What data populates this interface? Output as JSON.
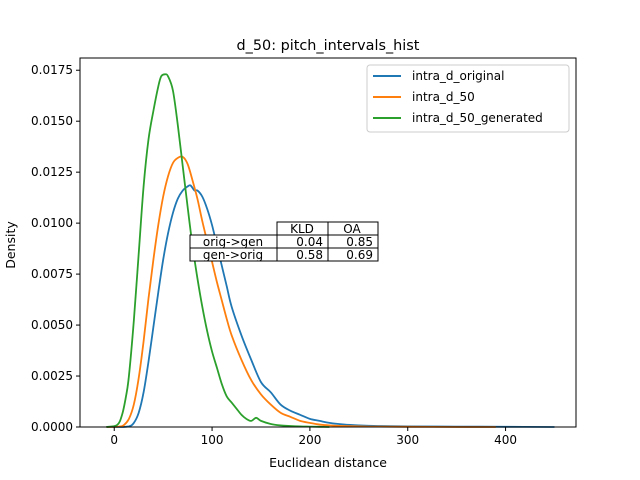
{
  "chart_data": {
    "type": "line",
    "title": "d_50: pitch_intervals_hist",
    "xlabel": "Euclidean distance",
    "ylabel": "Density",
    "xlim": [
      -35,
      472
    ],
    "ylim": [
      0,
      0.0181
    ],
    "xticks": [
      0,
      100,
      200,
      300,
      400
    ],
    "yticks": [
      0.0,
      0.0025,
      0.005,
      0.0075,
      0.01,
      0.0125,
      0.015,
      0.0175
    ],
    "xtick_labels": [
      "0",
      "100",
      "200",
      "300",
      "400"
    ],
    "ytick_labels": [
      "0.0000",
      "0.0025",
      "0.0050",
      "0.0075",
      "0.0100",
      "0.0125",
      "0.0150",
      "0.0175"
    ],
    "grid": false,
    "legend_position": "top-right",
    "series": [
      {
        "name": "intra_d_original",
        "color": "#1f77b4",
        "x": [
          -8,
          5,
          15,
          20,
          25,
          30,
          35,
          40,
          45,
          50,
          55,
          60,
          65,
          70,
          75,
          78,
          82,
          85,
          90,
          95,
          100,
          105,
          110,
          115,
          120,
          130,
          140,
          150,
          160,
          170,
          180,
          190,
          200,
          210,
          220,
          235,
          250,
          270,
          300,
          350,
          400,
          450
        ],
        "y": [
          0.0,
          0.0,
          3e-05,
          0.0002,
          0.0007,
          0.0017,
          0.0032,
          0.0049,
          0.0066,
          0.0082,
          0.0095,
          0.0105,
          0.0112,
          0.0116,
          0.0118,
          0.01185,
          0.0116,
          0.0116,
          0.0113,
          0.0107,
          0.0099,
          0.0089,
          0.0079,
          0.0069,
          0.0059,
          0.0045,
          0.0033,
          0.0022,
          0.0017,
          0.0011,
          0.0008,
          0.0006,
          0.0004,
          0.0003,
          0.0002,
          0.00012,
          8e-05,
          5e-05,
          3e-05,
          2e-05,
          1e-05,
          0.0
        ]
      },
      {
        "name": "intra_d_50",
        "color": "#ff7f0e",
        "x": [
          -8,
          5,
          10,
          15,
          20,
          25,
          30,
          35,
          40,
          45,
          50,
          55,
          60,
          65,
          70,
          75,
          80,
          85,
          90,
          95,
          100,
          105,
          110,
          115,
          120,
          130,
          140,
          150,
          160,
          170,
          180,
          190,
          200,
          210,
          220,
          240,
          260,
          300,
          350,
          390
        ],
        "y": [
          0.0,
          2e-05,
          0.0001,
          0.0004,
          0.0011,
          0.0024,
          0.0042,
          0.0063,
          0.0082,
          0.0099,
          0.0113,
          0.0123,
          0.01295,
          0.0132,
          0.01325,
          0.0129,
          0.0121,
          0.0112,
          0.0101,
          0.0091,
          0.0081,
          0.0071,
          0.0062,
          0.0053,
          0.0045,
          0.0033,
          0.0023,
          0.0016,
          0.0011,
          0.0007,
          0.0005,
          0.0003,
          0.0002,
          0.00012,
          8e-05,
          4e-05,
          2e-05,
          1e-05,
          0.0,
          0.0
        ]
      },
      {
        "name": "intra_d_50_generated",
        "color": "#2ca02c",
        "x": [
          -8,
          3,
          8,
          12,
          15,
          20,
          25,
          30,
          35,
          40,
          45,
          48,
          52,
          55,
          60,
          65,
          70,
          75,
          80,
          85,
          90,
          95,
          100,
          105,
          110,
          115,
          120,
          125,
          130,
          135,
          140,
          145,
          150,
          160,
          170,
          180,
          190,
          200,
          210,
          220
        ],
        "y": [
          0.0,
          0.0001,
          0.0006,
          0.0015,
          0.0025,
          0.0052,
          0.0085,
          0.0118,
          0.0141,
          0.0155,
          0.0167,
          0.0172,
          0.0173,
          0.0172,
          0.0165,
          0.0148,
          0.0128,
          0.0108,
          0.0089,
          0.0073,
          0.0059,
          0.0047,
          0.0037,
          0.0029,
          0.0021,
          0.0015,
          0.0012,
          0.0009,
          0.0006,
          0.0004,
          0.0003,
          0.00045,
          0.0003,
          0.00015,
          8e-05,
          5e-05,
          3e-05,
          2e-05,
          1e-05,
          0.0
        ]
      }
    ],
    "table": {
      "columns": [
        "KLD",
        "OA"
      ],
      "rows": [
        {
          "label": "orig->gen",
          "values": [
            "0.04",
            "0.85"
          ]
        },
        {
          "label": "gen->orig",
          "values": [
            "0.58",
            "0.69"
          ]
        }
      ]
    }
  }
}
